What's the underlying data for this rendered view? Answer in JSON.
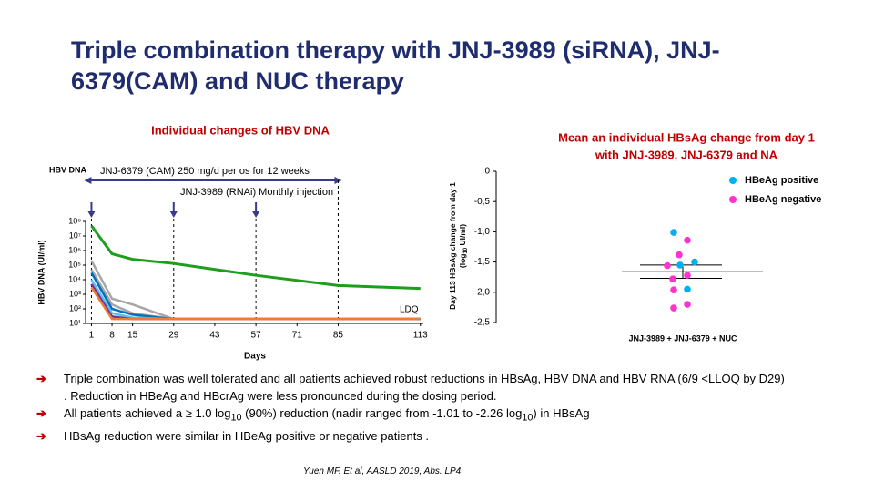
{
  "title": [
    "Triple combination therapy with JNJ-3989 (siRNA), JNJ-",
    "6379(CAM) and NUC therapy"
  ],
  "bullets": [
    [
      "Triple combination was well tolerated and all patients achieved robust reductions in HBsAg, HBV DNA and HBV RNA (6/9 <LLOQ by D29)",
      ". Reduction in HBeAg and HBcrAg were less pronounced during the dosing period."
    ],
    [
      "All patients achieved a ≥ 1.0 log",
      "10",
      " (90%) reduction (nadir ranged from -1.01 to -2.26 log",
      "10",
      ") in HBsAg"
    ],
    [
      "HBsAg reduction were similar in HBeAg positive or negative patients ."
    ]
  ],
  "citation": "Yuen MF. Et al, AASLD 2019, Abs. LP4",
  "chart_data": [
    {
      "type": "line",
      "title": "Individual changes of HBV DNA",
      "x_label": "Days",
      "y_label": "HBV DNA  (UI/ml)",
      "log_y": true,
      "xlim": [
        -1,
        114
      ],
      "ylim": [
        10,
        100000000
      ],
      "xticks": [
        1,
        8,
        15,
        29,
        43,
        57,
        71,
        85,
        113
      ],
      "yticks": [
        {
          "value": 10,
          "label": "10¹"
        },
        {
          "value": 100,
          "label": "10²"
        },
        {
          "value": 1000,
          "label": "10³"
        },
        {
          "value": 10000,
          "label": "10⁴"
        },
        {
          "value": 100000,
          "label": "10⁵"
        },
        {
          "value": 1000000,
          "label": "10⁶"
        },
        {
          "value": 10000000,
          "label": "10⁷"
        },
        {
          "value": 100000000,
          "label": "10⁸"
        }
      ],
      "x": [
        1,
        8,
        15,
        29,
        57,
        85,
        113
      ],
      "series": [
        {
          "color": "#a6a6a6",
          "values": [
            200000,
            500,
            200,
            20,
            20,
            20,
            20
          ]
        },
        {
          "color": "#a6a6a6",
          "values": [
            50000,
            200,
            50,
            20,
            20,
            20,
            20
          ]
        },
        {
          "color": "#0070c0",
          "values": [
            30000,
            100,
            40,
            20,
            20,
            20,
            20
          ]
        },
        {
          "color": "#5bc0eb",
          "values": [
            10000,
            50,
            25,
            20,
            20,
            20,
            20
          ]
        },
        {
          "color": "#7030a0",
          "values": [
            5000,
            30,
            20,
            20,
            20,
            20,
            20
          ]
        },
        {
          "color": "#ed7d31",
          "values": [
            3000,
            20,
            20,
            20,
            20,
            20,
            20
          ]
        },
        {
          "color": "#1e9e1e",
          "values": [
            50000000,
            600000,
            250000,
            130000,
            20000,
            4000,
            2500
          ]
        }
      ],
      "annotations": [
        "HBV DNA",
        "JNJ-6379 (CAM) 250 mg/d per os for 12 weeks",
        "JNJ-3989 (RNAi) Monthly injection",
        "LDQ"
      ],
      "cam_period": [
        1,
        85
      ],
      "injection_days": [
        1,
        29,
        57
      ]
    },
    {
      "type": "scatter",
      "title": [
        "Mean an individual HBsAg change from day 1",
        "with JNJ-3989, JNJ-6379 and NA"
      ],
      "y_label": [
        "Day 113 HBsAg change from day 1",
        "(log",
        "10",
        " UI/ml)"
      ],
      "categories": [
        "JNJ-3989 + JNJ-6379 + NUC"
      ],
      "ylim": [
        -2.5,
        0
      ],
      "yticks": [
        0,
        {
          "value": -0.5,
          "label": "-0,5"
        },
        {
          "value": -1,
          "label": "-1,0"
        },
        {
          "value": -1.5,
          "label": "-1,5"
        },
        {
          "value": -2,
          "label": "-2,0"
        },
        {
          "value": -2.5,
          "label": "-2,5"
        }
      ],
      "series": [
        {
          "name": "HBeAg positive",
          "color": "#00b0f0",
          "values": [
            -1.01,
            -1.55,
            -1.5,
            -1.95
          ]
        },
        {
          "name": "HBeAg negative",
          "color": "#ff33cc",
          "values": [
            -1.14,
            -1.38,
            -1.56,
            -1.72,
            -1.78,
            -1.96,
            -2.2,
            -2.26
          ]
        }
      ],
      "mean": -1.66,
      "error": 0.11
    }
  ]
}
